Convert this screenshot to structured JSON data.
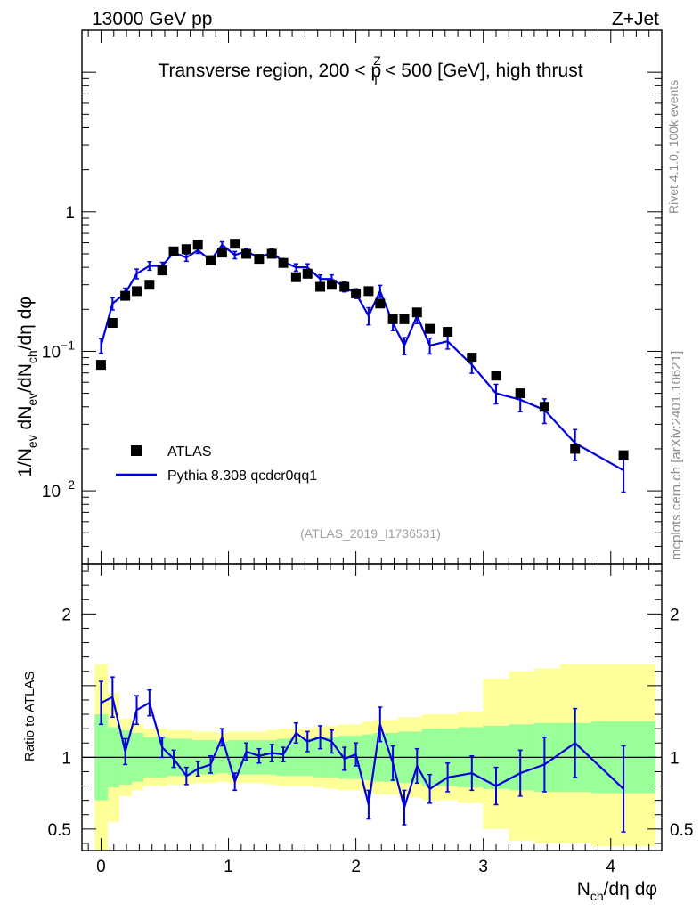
{
  "header": {
    "left": "13000 GeV pp",
    "right": "Z+Jet"
  },
  "side_labels": {
    "rivet": "Rivet 4.1.0,  100k events",
    "mcplots": "mcplots.cern.ch [arXiv:2401.10621]"
  },
  "chart_data": [
    {
      "type": "scatter",
      "panel": "main",
      "title": "Transverse region, 200 < p_T^Z < 500 [GeV], high thrust",
      "ylabel": "1/N_ev dN_ev/dN_ch/dη dφ",
      "xlabel": "N_ch/dη dφ",
      "yscale": "log",
      "xlim": [
        -0.15,
        4.4
      ],
      "ylim": [
        0.003,
        20
      ],
      "ytick_labels": [
        "10^-2",
        "10^-1",
        "1"
      ],
      "xtick_labels": [
        "0",
        "1",
        "2",
        "3",
        "4"
      ],
      "watermark": "(ATLAS_2019_I1736531)",
      "legend": [
        "ATLAS",
        "Pythia 8.308 qcdcr0qq1"
      ],
      "series": [
        {
          "name": "ATLAS",
          "color": "#000000",
          "x": [
            0.0,
            0.09,
            0.19,
            0.28,
            0.38,
            0.48,
            0.57,
            0.67,
            0.76,
            0.86,
            0.95,
            1.05,
            1.14,
            1.24,
            1.34,
            1.43,
            1.53,
            1.62,
            1.72,
            1.81,
            1.91,
            2.0,
            2.1,
            2.19,
            2.29,
            2.38,
            2.48,
            2.58,
            2.72,
            2.91,
            3.1,
            3.29,
            3.48,
            3.72,
            4.1
          ],
          "y": [
            0.08,
            0.16,
            0.25,
            0.27,
            0.3,
            0.38,
            0.52,
            0.54,
            0.58,
            0.45,
            0.51,
            0.59,
            0.5,
            0.46,
            0.5,
            0.43,
            0.34,
            0.36,
            0.29,
            0.3,
            0.29,
            0.26,
            0.27,
            0.22,
            0.17,
            0.17,
            0.19,
            0.145,
            0.138,
            0.09,
            0.067,
            0.05,
            0.04,
            0.02,
            0.018
          ]
        },
        {
          "name": "Pythia 8.308 qcdcr0qq1",
          "color": "#0000dd",
          "x": [
            0.0,
            0.09,
            0.19,
            0.28,
            0.38,
            0.48,
            0.57,
            0.67,
            0.76,
            0.86,
            0.95,
            1.05,
            1.14,
            1.24,
            1.34,
            1.43,
            1.53,
            1.62,
            1.72,
            1.81,
            1.91,
            2.0,
            2.1,
            2.19,
            2.29,
            2.38,
            2.48,
            2.58,
            2.72,
            2.91,
            3.1,
            3.29,
            3.48,
            3.72,
            4.1
          ],
          "y": [
            0.11,
            0.22,
            0.26,
            0.36,
            0.41,
            0.41,
            0.51,
            0.47,
            0.53,
            0.45,
            0.58,
            0.49,
            0.52,
            0.47,
            0.51,
            0.44,
            0.4,
            0.4,
            0.33,
            0.33,
            0.29,
            0.26,
            0.18,
            0.27,
            0.16,
            0.11,
            0.18,
            0.11,
            0.118,
            0.08,
            0.05,
            0.045,
            0.038,
            0.022,
            0.014
          ],
          "yerr_rel": [
            0.12,
            0.1,
            0.09,
            0.08,
            0.07,
            0.06,
            0.05,
            0.06,
            0.05,
            0.06,
            0.05,
            0.06,
            0.05,
            0.05,
            0.06,
            0.05,
            0.06,
            0.06,
            0.07,
            0.07,
            0.08,
            0.08,
            0.14,
            0.1,
            0.12,
            0.14,
            0.12,
            0.13,
            0.12,
            0.13,
            0.16,
            0.18,
            0.2,
            0.25,
            0.3
          ]
        }
      ]
    },
    {
      "type": "line",
      "panel": "ratio",
      "ylabel": "Ratio to ATLAS",
      "ylim": [
        0.35,
        2.35
      ],
      "ytick_labels": [
        "0.5",
        "1",
        "2"
      ],
      "reference_line": 1.0,
      "uncertainty_bands": {
        "bin_edges": [
          -0.05,
          0.05,
          0.14,
          0.24,
          0.33,
          0.43,
          0.52,
          0.62,
          0.71,
          0.81,
          0.9,
          1.0,
          1.1,
          1.19,
          1.29,
          1.38,
          1.48,
          1.57,
          1.67,
          1.76,
          1.86,
          1.95,
          2.05,
          2.14,
          2.24,
          2.33,
          2.43,
          2.52,
          2.65,
          2.8,
          3.0,
          3.2,
          3.4,
          3.6,
          3.85,
          4.35
        ],
        "green_lo": [
          0.7,
          0.79,
          0.81,
          0.83,
          0.86,
          0.86,
          0.87,
          0.87,
          0.88,
          0.88,
          0.89,
          0.88,
          0.88,
          0.88,
          0.88,
          0.87,
          0.87,
          0.87,
          0.86,
          0.86,
          0.85,
          0.85,
          0.84,
          0.83,
          0.83,
          0.82,
          0.82,
          0.8,
          0.8,
          0.79,
          0.78,
          0.77,
          0.76,
          0.76,
          0.75
        ],
        "green_hi": [
          1.3,
          1.21,
          1.19,
          1.17,
          1.14,
          1.14,
          1.13,
          1.13,
          1.12,
          1.12,
          1.11,
          1.12,
          1.12,
          1.12,
          1.12,
          1.13,
          1.13,
          1.13,
          1.14,
          1.14,
          1.15,
          1.15,
          1.16,
          1.17,
          1.17,
          1.18,
          1.18,
          1.2,
          1.2,
          1.21,
          1.22,
          1.23,
          1.24,
          1.24,
          1.25
        ],
        "yellow_lo": [
          0.35,
          0.55,
          0.73,
          0.77,
          0.8,
          0.8,
          0.81,
          0.81,
          0.82,
          0.82,
          0.83,
          0.82,
          0.82,
          0.82,
          0.81,
          0.8,
          0.8,
          0.8,
          0.79,
          0.78,
          0.77,
          0.77,
          0.75,
          0.74,
          0.74,
          0.72,
          0.72,
          0.7,
          0.7,
          0.68,
          0.5,
          0.42,
          0.4,
          0.4,
          0.38
        ],
        "yellow_hi": [
          1.65,
          1.45,
          1.27,
          1.23,
          1.2,
          1.2,
          1.19,
          1.19,
          1.18,
          1.18,
          1.17,
          1.18,
          1.18,
          1.18,
          1.19,
          1.2,
          1.2,
          1.2,
          1.21,
          1.22,
          1.23,
          1.23,
          1.25,
          1.26,
          1.26,
          1.28,
          1.28,
          1.3,
          1.3,
          1.32,
          1.55,
          1.6,
          1.62,
          1.65,
          1.65
        ]
      },
      "series": [
        {
          "name": "Pythia 8.308 qcdcr0qq1 / ATLAS",
          "color": "#0000dd",
          "x": [
            0.0,
            0.09,
            0.19,
            0.28,
            0.38,
            0.48,
            0.57,
            0.67,
            0.76,
            0.86,
            0.95,
            1.05,
            1.14,
            1.24,
            1.34,
            1.43,
            1.53,
            1.62,
            1.72,
            1.81,
            1.91,
            2.0,
            2.1,
            2.19,
            2.29,
            2.38,
            2.48,
            2.58,
            2.72,
            2.91,
            3.1,
            3.29,
            3.48,
            3.72,
            4.1
          ],
          "y": [
            1.38,
            1.42,
            1.04,
            1.33,
            1.38,
            1.07,
            0.99,
            0.87,
            0.92,
            0.95,
            1.14,
            0.83,
            1.04,
            1.01,
            1.03,
            1.02,
            1.17,
            1.11,
            1.14,
            1.11,
            0.99,
            1.02,
            0.67,
            1.23,
            0.96,
            0.65,
            0.94,
            0.78,
            0.86,
            0.89,
            0.8,
            0.89,
            0.95,
            1.1,
            0.78
          ],
          "yerr": [
            0.15,
            0.14,
            0.09,
            0.1,
            0.09,
            0.07,
            0.06,
            0.06,
            0.05,
            0.06,
            0.06,
            0.06,
            0.06,
            0.05,
            0.06,
            0.05,
            0.07,
            0.07,
            0.08,
            0.08,
            0.08,
            0.08,
            0.1,
            0.12,
            0.12,
            0.12,
            0.12,
            0.1,
            0.1,
            0.12,
            0.13,
            0.16,
            0.19,
            0.24,
            0.3
          ]
        }
      ]
    }
  ]
}
